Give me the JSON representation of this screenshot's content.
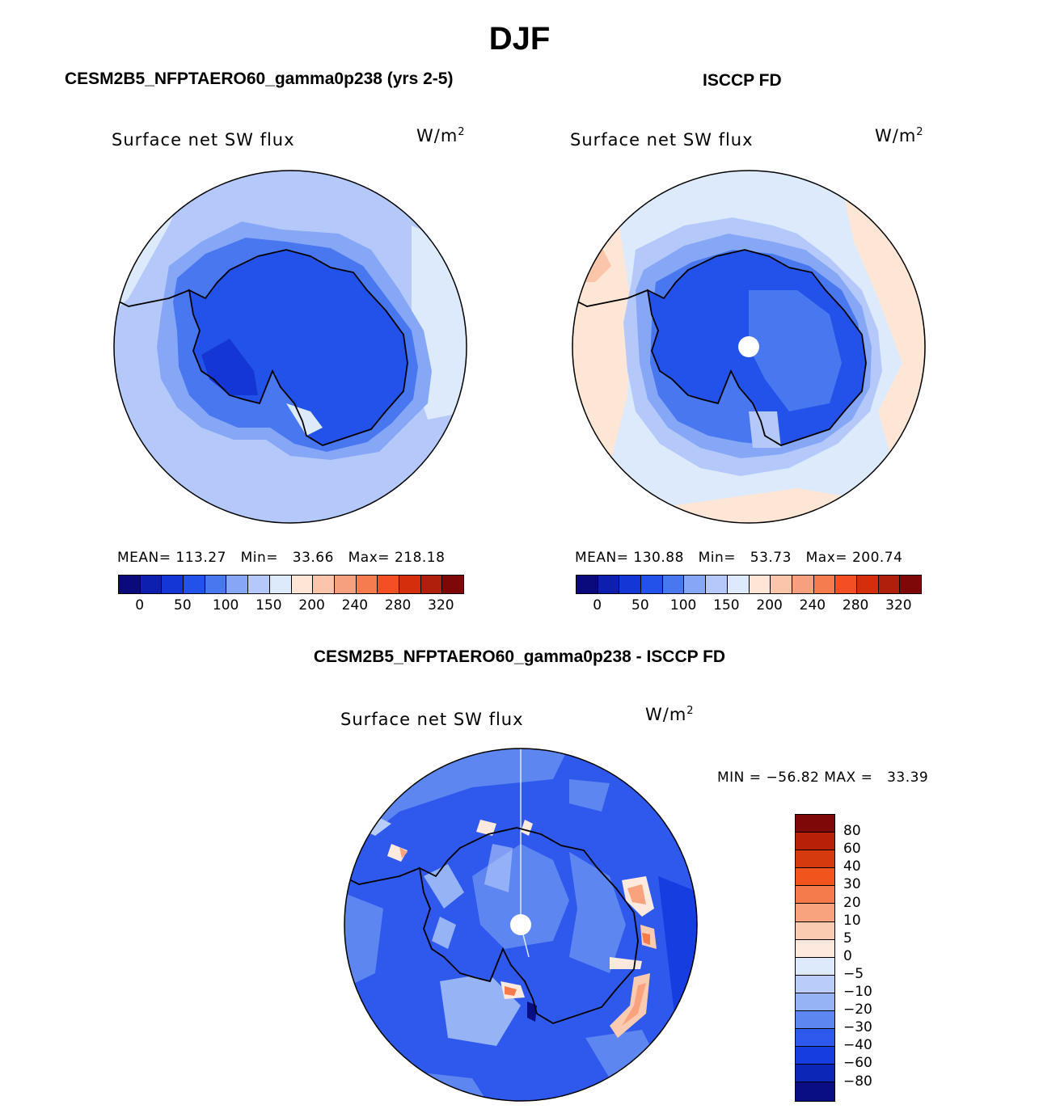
{
  "figure": {
    "title": "DJF",
    "diff_title": "CESM2B5_NFPTAERO60_gamma0p238 - ISCCP FD"
  },
  "panels": {
    "model": {
      "title": "CESM2B5_NFPTAERO60_gamma0p238 (yrs 2-5)",
      "variable": "Surface net SW flux",
      "units_base": "W/m",
      "units_exp": "2",
      "stats": {
        "mean_label": "MEAN=",
        "mean": "113.27",
        "min_label": "Min=",
        "min": "33.66",
        "max_label": "Max=",
        "max": "218.18"
      }
    },
    "obs": {
      "title": "ISCCP FD",
      "variable": "Surface net SW flux",
      "units_base": "W/m",
      "units_exp": "2",
      "stats": {
        "mean_label": "MEAN=",
        "mean": "130.88",
        "min_label": "Min=",
        "min": "53.73",
        "max_label": "Max=",
        "max": "200.74"
      }
    },
    "diff": {
      "variable": "Surface net SW flux",
      "units_base": "W/m",
      "units_exp": "2",
      "minmax": "MIN = −56.82 MAX =   33.39"
    }
  },
  "colorbar_abs": {
    "colors": [
      "#0a0a7c",
      "#0d1fae",
      "#1436d4",
      "#2252ea",
      "#4877ef",
      "#86a7f5",
      "#b4c9fa",
      "#dceafb",
      "#fde6d6",
      "#fac5a9",
      "#f7a07d",
      "#f57c4f",
      "#f24f23",
      "#d52e0d",
      "#b01f0b",
      "#7d0808"
    ],
    "ticks": [
      "0",
      "50",
      "100",
      "150",
      "200",
      "240",
      "280",
      "320"
    ]
  },
  "colorbar_diff": {
    "colors": [
      "#7d0808",
      "#b82007",
      "#d53a0f",
      "#f2541d",
      "#f67b4c",
      "#f8a27e",
      "#facbb1",
      "#fde9de",
      "#dceafb",
      "#b9cdfa",
      "#96b3f6",
      "#5d86f1",
      "#2e59ec",
      "#163ddf",
      "#0c26b8",
      "#0a0e84"
    ],
    "ticks": [
      "80",
      "60",
      "40",
      "30",
      "20",
      "10",
      "5",
      "0",
      "−5",
      "−10",
      "−20",
      "−30",
      "−40",
      "−60",
      "−80"
    ]
  },
  "chart_data": {
    "type": "polar-contour-map",
    "region": "Southern Hemisphere (Antarctica) polar stereographic",
    "season": "DJF",
    "maps": [
      {
        "name": "CESM2B5_NFPTAERO60_gamma0p238 (yrs 2-5)",
        "variable": "Surface net SW flux",
        "units": "W/m2",
        "mean": 113.27,
        "min": 33.66,
        "max": 218.18,
        "levels": [
          0,
          25,
          50,
          75,
          100,
          125,
          150,
          175,
          200,
          220,
          240,
          260,
          280,
          300,
          320
        ]
      },
      {
        "name": "ISCCP FD",
        "variable": "Surface net SW flux",
        "units": "W/m2",
        "mean": 130.88,
        "min": 53.73,
        "max": 200.74,
        "levels": [
          0,
          25,
          50,
          75,
          100,
          125,
          150,
          175,
          200,
          220,
          240,
          260,
          280,
          300,
          320
        ]
      },
      {
        "name": "CESM2B5_NFPTAERO60_gamma0p238 - ISCCP FD",
        "variable": "Surface net SW flux",
        "units": "W/m2",
        "min": -56.82,
        "max": 33.39,
        "levels": [
          80,
          60,
          40,
          30,
          20,
          10,
          5,
          0,
          -5,
          -10,
          -20,
          -30,
          -40,
          -60,
          -80
        ]
      }
    ]
  }
}
